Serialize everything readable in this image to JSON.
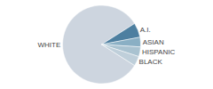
{
  "chart_data": {
    "type": "pie",
    "categories": [
      "WHITE",
      "A.I.",
      "ASIAN",
      "HISPANIC",
      "BLACK"
    ],
    "values": [
      82,
      6,
      4,
      4,
      4
    ],
    "colors": [
      "#cdd5df",
      "#4d7fa0",
      "#8aafc4",
      "#a9c2d0",
      "#bfcfda"
    ]
  }
}
